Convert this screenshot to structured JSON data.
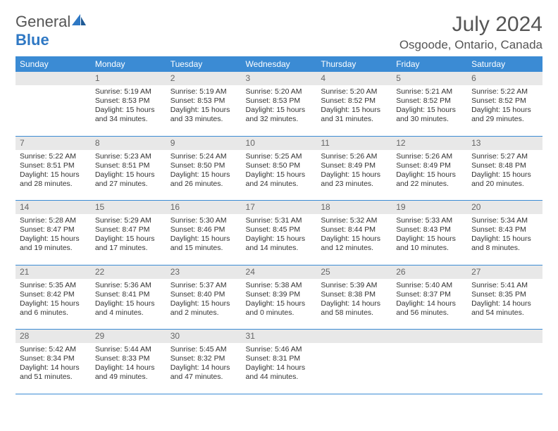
{
  "logo": {
    "text_gray": "General",
    "text_blue": "Blue"
  },
  "title": "July 2024",
  "location": "Osgoode, Ontario, Canada",
  "colors": {
    "header_bg": "#3b8bd4",
    "header_text": "#ffffff",
    "daynum_bg": "#e8e8e8",
    "daynum_text": "#666666",
    "body_text": "#333333",
    "rule": "#3b8bd4",
    "logo_gray": "#555555",
    "logo_blue": "#2f78c4"
  },
  "weekdays": [
    "Sunday",
    "Monday",
    "Tuesday",
    "Wednesday",
    "Thursday",
    "Friday",
    "Saturday"
  ],
  "weeks": [
    [
      null,
      {
        "n": "1",
        "sr": "5:19 AM",
        "ss": "8:53 PM",
        "dl": "15 hours and 34 minutes."
      },
      {
        "n": "2",
        "sr": "5:19 AM",
        "ss": "8:53 PM",
        "dl": "15 hours and 33 minutes."
      },
      {
        "n": "3",
        "sr": "5:20 AM",
        "ss": "8:53 PM",
        "dl": "15 hours and 32 minutes."
      },
      {
        "n": "4",
        "sr": "5:20 AM",
        "ss": "8:52 PM",
        "dl": "15 hours and 31 minutes."
      },
      {
        "n": "5",
        "sr": "5:21 AM",
        "ss": "8:52 PM",
        "dl": "15 hours and 30 minutes."
      },
      {
        "n": "6",
        "sr": "5:22 AM",
        "ss": "8:52 PM",
        "dl": "15 hours and 29 minutes."
      }
    ],
    [
      {
        "n": "7",
        "sr": "5:22 AM",
        "ss": "8:51 PM",
        "dl": "15 hours and 28 minutes."
      },
      {
        "n": "8",
        "sr": "5:23 AM",
        "ss": "8:51 PM",
        "dl": "15 hours and 27 minutes."
      },
      {
        "n": "9",
        "sr": "5:24 AM",
        "ss": "8:50 PM",
        "dl": "15 hours and 26 minutes."
      },
      {
        "n": "10",
        "sr": "5:25 AM",
        "ss": "8:50 PM",
        "dl": "15 hours and 24 minutes."
      },
      {
        "n": "11",
        "sr": "5:26 AM",
        "ss": "8:49 PM",
        "dl": "15 hours and 23 minutes."
      },
      {
        "n": "12",
        "sr": "5:26 AM",
        "ss": "8:49 PM",
        "dl": "15 hours and 22 minutes."
      },
      {
        "n": "13",
        "sr": "5:27 AM",
        "ss": "8:48 PM",
        "dl": "15 hours and 20 minutes."
      }
    ],
    [
      {
        "n": "14",
        "sr": "5:28 AM",
        "ss": "8:47 PM",
        "dl": "15 hours and 19 minutes."
      },
      {
        "n": "15",
        "sr": "5:29 AM",
        "ss": "8:47 PM",
        "dl": "15 hours and 17 minutes."
      },
      {
        "n": "16",
        "sr": "5:30 AM",
        "ss": "8:46 PM",
        "dl": "15 hours and 15 minutes."
      },
      {
        "n": "17",
        "sr": "5:31 AM",
        "ss": "8:45 PM",
        "dl": "15 hours and 14 minutes."
      },
      {
        "n": "18",
        "sr": "5:32 AM",
        "ss": "8:44 PM",
        "dl": "15 hours and 12 minutes."
      },
      {
        "n": "19",
        "sr": "5:33 AM",
        "ss": "8:43 PM",
        "dl": "15 hours and 10 minutes."
      },
      {
        "n": "20",
        "sr": "5:34 AM",
        "ss": "8:43 PM",
        "dl": "15 hours and 8 minutes."
      }
    ],
    [
      {
        "n": "21",
        "sr": "5:35 AM",
        "ss": "8:42 PM",
        "dl": "15 hours and 6 minutes."
      },
      {
        "n": "22",
        "sr": "5:36 AM",
        "ss": "8:41 PM",
        "dl": "15 hours and 4 minutes."
      },
      {
        "n": "23",
        "sr": "5:37 AM",
        "ss": "8:40 PM",
        "dl": "15 hours and 2 minutes."
      },
      {
        "n": "24",
        "sr": "5:38 AM",
        "ss": "8:39 PM",
        "dl": "15 hours and 0 minutes."
      },
      {
        "n": "25",
        "sr": "5:39 AM",
        "ss": "8:38 PM",
        "dl": "14 hours and 58 minutes."
      },
      {
        "n": "26",
        "sr": "5:40 AM",
        "ss": "8:37 PM",
        "dl": "14 hours and 56 minutes."
      },
      {
        "n": "27",
        "sr": "5:41 AM",
        "ss": "8:35 PM",
        "dl": "14 hours and 54 minutes."
      }
    ],
    [
      {
        "n": "28",
        "sr": "5:42 AM",
        "ss": "8:34 PM",
        "dl": "14 hours and 51 minutes."
      },
      {
        "n": "29",
        "sr": "5:44 AM",
        "ss": "8:33 PM",
        "dl": "14 hours and 49 minutes."
      },
      {
        "n": "30",
        "sr": "5:45 AM",
        "ss": "8:32 PM",
        "dl": "14 hours and 47 minutes."
      },
      {
        "n": "31",
        "sr": "5:46 AM",
        "ss": "8:31 PM",
        "dl": "14 hours and 44 minutes."
      },
      null,
      null,
      null
    ]
  ],
  "labels": {
    "sunrise": "Sunrise:",
    "sunset": "Sunset:",
    "daylight": "Daylight:"
  }
}
